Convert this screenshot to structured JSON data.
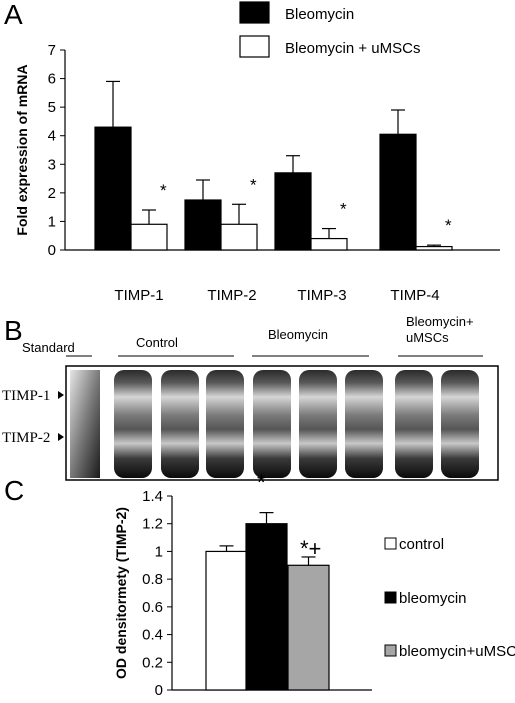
{
  "panels": {
    "a": "A",
    "b": "B",
    "c": "C"
  },
  "chart_data": [
    {
      "type": "bar",
      "ylabel": "Fold expression of mRNA",
      "ylim": [
        0,
        7
      ],
      "yticks": [
        "0",
        "1",
        "2",
        "3",
        "4",
        "5",
        "6",
        "7"
      ],
      "categories": [
        "TIMP-1",
        "TIMP-2",
        "TIMP-3",
        "TIMP-4"
      ],
      "series": [
        {
          "name": "Bleomycin",
          "color": "#000000",
          "values": [
            4.3,
            1.75,
            2.7,
            4.05
          ],
          "errors": [
            1.6,
            0.7,
            0.6,
            0.85
          ]
        },
        {
          "name": "Bleomycin + uMSCs",
          "color": "#ffffff",
          "values": [
            0.9,
            0.9,
            0.4,
            0.12
          ],
          "errors": [
            0.5,
            0.7,
            0.35,
            0.05
          ]
        }
      ],
      "annotations": [
        "*",
        "*",
        "*",
        "*"
      ],
      "legend_position": "top-right"
    },
    {
      "type": "gel",
      "lane_groups": [
        "Standard",
        "Control",
        "Bleomycin",
        "Bleomycin+\nuMSCs"
      ],
      "bands": [
        "TIMP-1",
        "TIMP-2"
      ]
    },
    {
      "type": "bar",
      "ylabel": "OD densitormety (TIMP-2)",
      "ylim": [
        0,
        1.4
      ],
      "yticks": [
        "0",
        "0.2",
        "0.4",
        "0.6",
        "0.8",
        "1",
        "1.2",
        "1.4"
      ],
      "categories": [
        "control",
        "bleomycin",
        "bleomycin+uMSCs"
      ],
      "values": [
        1.0,
        1.2,
        0.9
      ],
      "errors": [
        0.04,
        0.08,
        0.06
      ],
      "colors": [
        "#ffffff",
        "#000000",
        "#a6a6a6"
      ],
      "annotations": [
        "",
        "*",
        "*+"
      ],
      "legend": [
        "control",
        "bleomycin",
        "bleomycin+uMSCs"
      ],
      "legend_position": "right"
    }
  ]
}
